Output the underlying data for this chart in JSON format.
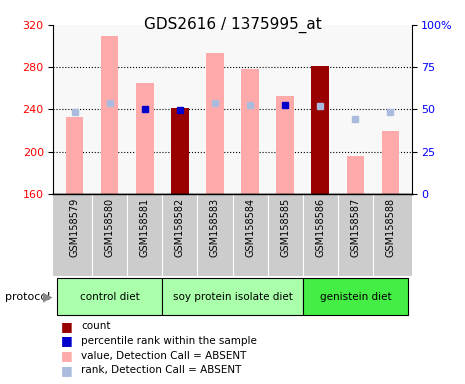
{
  "title": "GDS2616 / 1375995_at",
  "samples": [
    "GSM158579",
    "GSM158580",
    "GSM158581",
    "GSM158582",
    "GSM158583",
    "GSM158584",
    "GSM158585",
    "GSM158586",
    "GSM158587",
    "GSM158588"
  ],
  "group_names": [
    "control diet",
    "soy protein isolate diet",
    "genistein diet"
  ],
  "group_starts": [
    0,
    3,
    7
  ],
  "group_ends": [
    3,
    7,
    10
  ],
  "group_colors": [
    "#aaffaa",
    "#aaffaa",
    "#44ee44"
  ],
  "value_bars": [
    233,
    310,
    265,
    241,
    293,
    278,
    253,
    281,
    196,
    220
  ],
  "rank_squares": [
    238,
    246,
    240,
    239,
    246,
    244,
    244,
    243,
    231,
    238
  ],
  "value_absent": [
    true,
    true,
    true,
    false,
    true,
    true,
    true,
    false,
    true,
    true
  ],
  "rank_absent": [
    true,
    true,
    false,
    false,
    true,
    true,
    false,
    true,
    true,
    true
  ],
  "ylim_left": [
    160,
    320
  ],
  "ylim_right": [
    0,
    100
  ],
  "yticks_left": [
    160,
    200,
    240,
    280,
    320
  ],
  "yticks_right": [
    0,
    25,
    50,
    75,
    100
  ],
  "bar_color_absent": "#ffaaaa",
  "bar_color_present": "#990000",
  "rank_color_absent": "#aabbdd",
  "rank_color_present": "#0000cc",
  "bg_plot": "#f8f8f8",
  "bg_sample": "#cccccc"
}
